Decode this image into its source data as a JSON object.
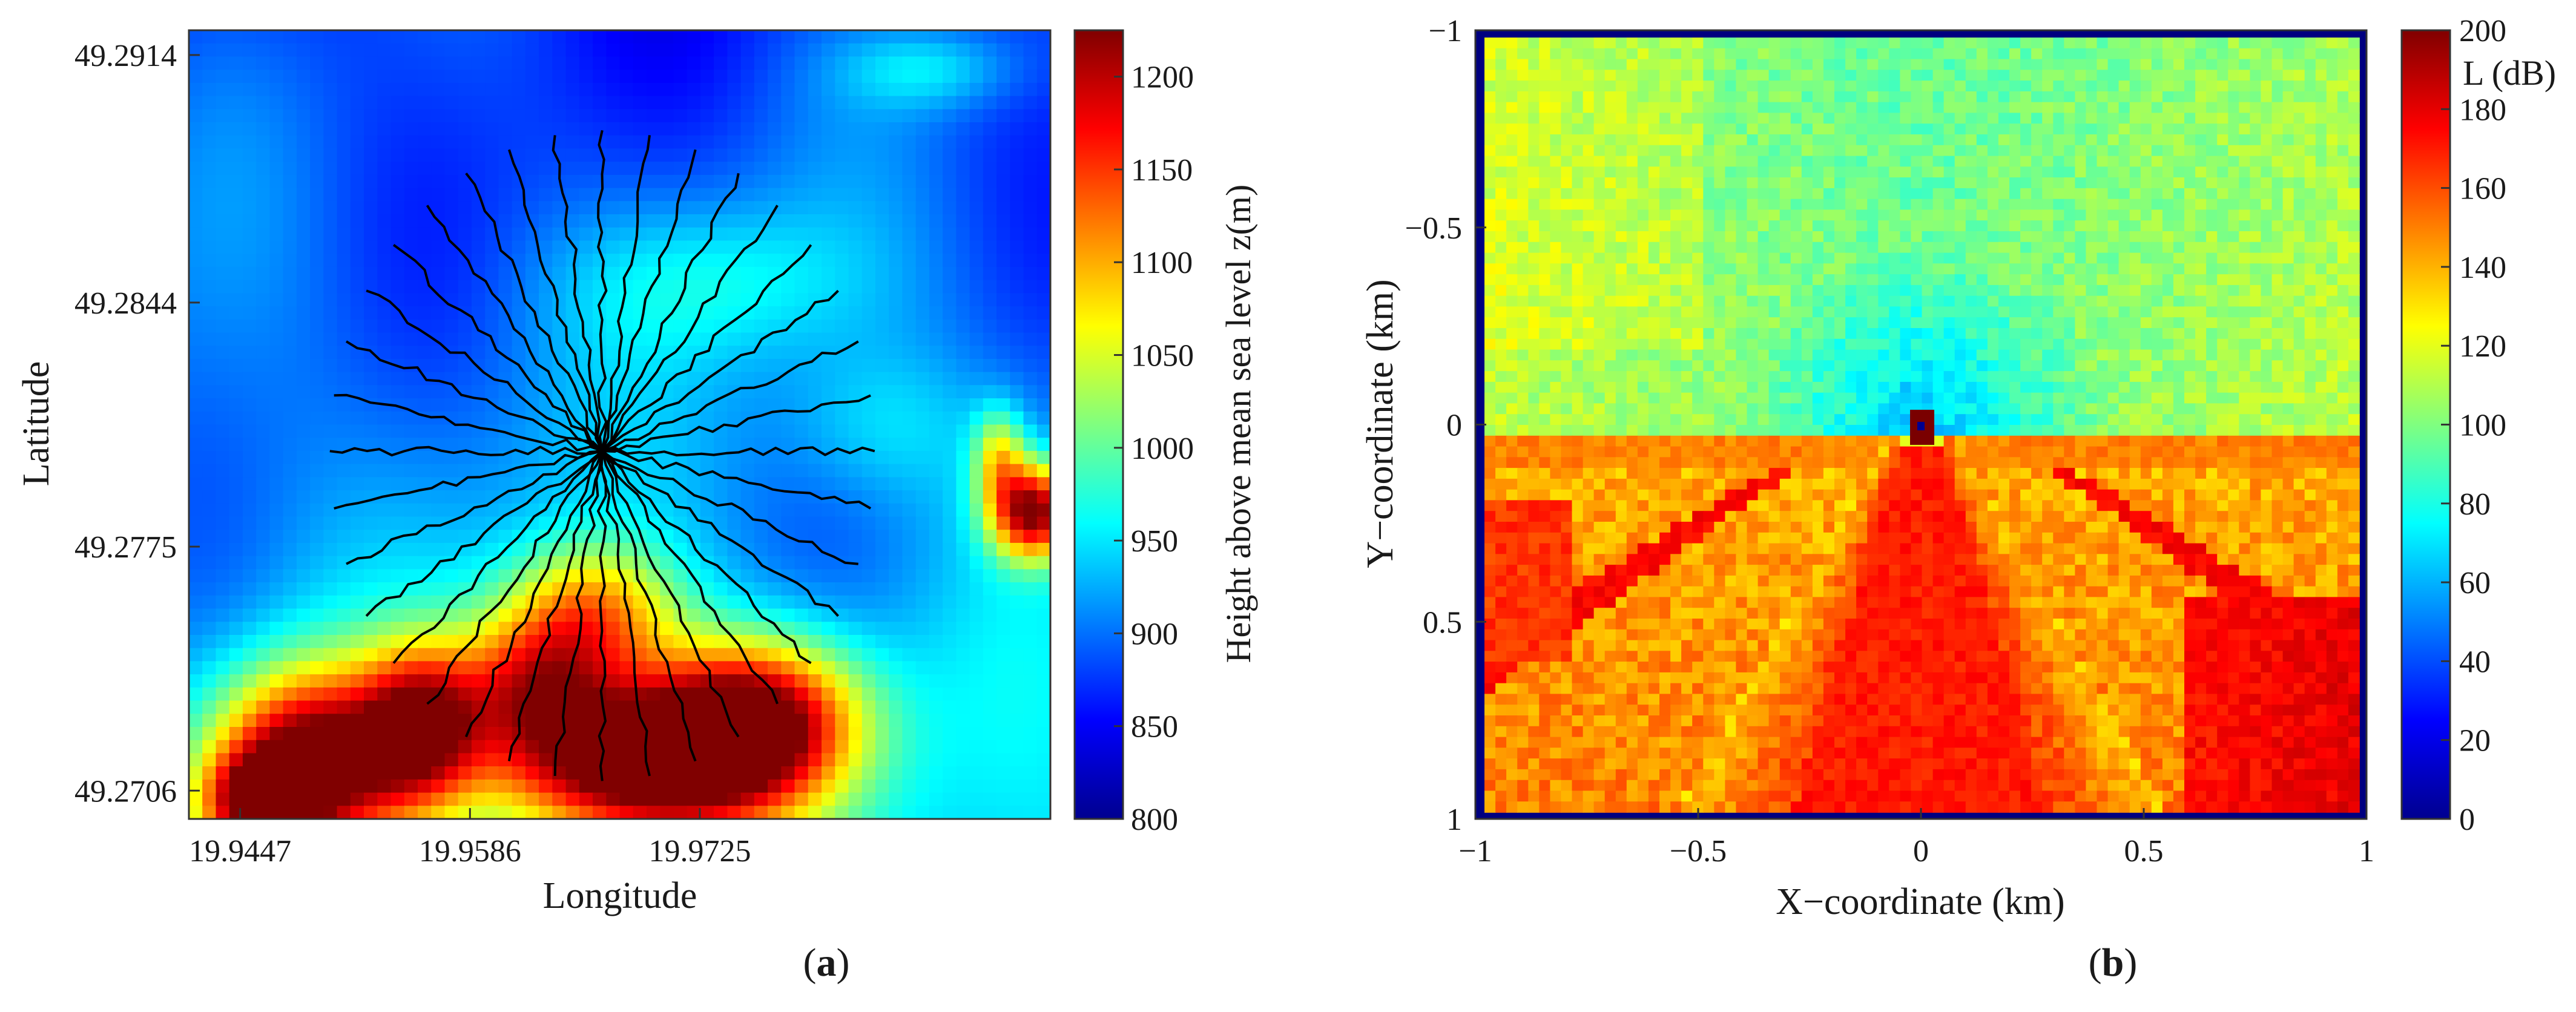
{
  "chart_data": [
    {
      "type": "heatmap",
      "panel_label": "a",
      "title": "",
      "xlabel": "Longitude",
      "ylabel": "Latitude",
      "colorbar_label": "Height above mean sea level z(m)",
      "x_ticks": [
        "19.9447",
        "19.9586",
        "19.9725"
      ],
      "x_tick_values": [
        19.9447,
        19.9586,
        19.9725
      ],
      "y_ticks": [
        "49.2914",
        "49.2844",
        "49.2775",
        "49.2706"
      ],
      "y_tick_values": [
        49.2914,
        49.2844,
        49.2775,
        49.2706
      ],
      "xlim": [
        19.9416,
        19.9937
      ],
      "ylim": [
        49.2698,
        49.2921
      ],
      "colorbar_ticks": [
        800,
        850,
        900,
        950,
        1000,
        1050,
        1100,
        1150,
        1200
      ],
      "color_range": [
        800,
        1225
      ],
      "colormap": "jet",
      "terrain": "low terrain (~850-950 m) in the northern/upper-left part, rising to 1150-1225 m peaks along the southern edge",
      "overlay": {
        "type": "radial_profiles",
        "count": 36,
        "center_lon": 19.9666,
        "center_lat": 49.2802,
        "color": "#000000"
      }
    },
    {
      "type": "heatmap",
      "panel_label": "b",
      "title": "",
      "xlabel": "X−coordinate (km)",
      "ylabel": "Y−coordinate (km)",
      "colorbar_label": "L (dB)",
      "x_ticks": [
        "−1",
        "−0.5",
        "0",
        "0.5",
        "1"
      ],
      "x_tick_values": [
        -1,
        -0.5,
        0,
        0.5,
        1
      ],
      "y_ticks": [
        "−1",
        "−0.5",
        "0",
        "0.5",
        "1"
      ],
      "y_tick_values": [
        -1,
        -0.5,
        0,
        0.5,
        1
      ],
      "xlim": [
        -1,
        1
      ],
      "ylim": [
        -1,
        1
      ],
      "y_axis_reversed": true,
      "colorbar_ticks": [
        0,
        20,
        40,
        60,
        80,
        100,
        120,
        140,
        160,
        180,
        200
      ],
      "color_range": [
        0,
        200
      ],
      "colormap": "jet",
      "transmitter": {
        "x": 0,
        "y": 0
      },
      "field": "path loss ~60-100 dB in the upper half, ~130-190 dB in the lower half with a high-loss (~170-180 dB) wedge below the transmitter"
    }
  ]
}
